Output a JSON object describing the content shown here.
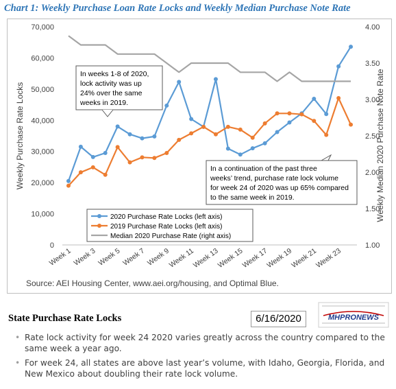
{
  "page": {
    "title": "Chart 1: Weekly Purchase Loan Rate Locks and Weekly Median Purchase Note Rate",
    "section_title": "State Purchase Rate Locks",
    "date": "6/16/2020",
    "logo_text": "MHPRONEWS",
    "bullets": [
      "Rate lock activity for week 24 2020 varies greatly across the country compared to the same week a year ago.",
      "For week 24, all states are above last year’s volume, with Idaho, Georgia, Florida, and New Mexico about doubling their rate lock volume."
    ]
  },
  "chart_data": {
    "type": "line",
    "x": [
      "Week 1",
      "Week 2",
      "Week 3",
      "Week 4",
      "Week 5",
      "Week 6",
      "Week 7",
      "Week 8",
      "Week 9",
      "Week 10",
      "Week 11",
      "Week 12",
      "Week 13",
      "Week 14",
      "Week 15",
      "Week 16",
      "Week 17",
      "Week 18",
      "Week 19",
      "Week 20",
      "Week 21",
      "Week 22",
      "Week 23",
      "Week 24"
    ],
    "x_tick_labels": [
      "Week 1",
      "Week 3",
      "Week 5",
      "Week 7",
      "Week 9",
      "Week 11",
      "Week 13",
      "Week 15",
      "Week 17",
      "Week 19",
      "Week 21",
      "Week 23"
    ],
    "ylabel": "Weekly Purchase Rate Locks",
    "y2label": "Weekly Median 2020 Purchase Note Rate",
    "ylim": [
      0,
      70000
    ],
    "y_ticks": [
      "0",
      "10,000",
      "20,000",
      "30,000",
      "40,000",
      "50,000",
      "60,000",
      "70,000"
    ],
    "y2lim": [
      1.0,
      4.0
    ],
    "y2_ticks": [
      "1.00",
      "1.50",
      "2.00",
      "2.50",
      "3.00",
      "3.50",
      "4.00"
    ],
    "grid": false,
    "legend_position": "bottom-left",
    "series": [
      {
        "name": "2020 Purchase Rate Locks (left axis)",
        "axis": "left",
        "color": "#5b9bd5",
        "marker": true,
        "values": [
          20500,
          31500,
          28200,
          29500,
          38000,
          35500,
          34200,
          34800,
          44700,
          52300,
          40400,
          37900,
          53200,
          30900,
          29000,
          31000,
          32600,
          36200,
          39300,
          42200,
          46900,
          42000,
          57300,
          63600
        ]
      },
      {
        "name": "2019 Purchase Rate Locks (left axis)",
        "axis": "left",
        "color": "#ed7d31",
        "marker": true,
        "values": [
          19000,
          23300,
          24900,
          22500,
          31400,
          26500,
          28100,
          27900,
          29500,
          33700,
          35800,
          37900,
          35500,
          37900,
          37000,
          34400,
          39000,
          42200,
          42200,
          41900,
          39800,
          35300,
          47100,
          38600
        ]
      },
      {
        "name": "Median 2020 Purchase Rate (right axis)",
        "axis": "right",
        "color": "#a5a5a5",
        "marker": false,
        "values": [
          3.875,
          3.75,
          3.75,
          3.75,
          3.625,
          3.625,
          3.625,
          3.625,
          3.5,
          3.375,
          3.5,
          3.5,
          3.5,
          3.5,
          3.375,
          3.375,
          3.375,
          3.25,
          3.375,
          3.25,
          3.25,
          3.25,
          3.25,
          3.25
        ]
      }
    ],
    "annotations": [
      {
        "text": "In weeks 1-8 of 2020, lock activity was up 24% over the same weeks in 2019."
      },
      {
        "text": "In a continuation of the past three weeks’ trend, purchase rate lock volume for week 24 of 2020 was up 65% compared to the same week in 2019."
      }
    ],
    "source": "Source: AEI Housing Center, www.aei.org/housing, and Optimal Blue."
  }
}
